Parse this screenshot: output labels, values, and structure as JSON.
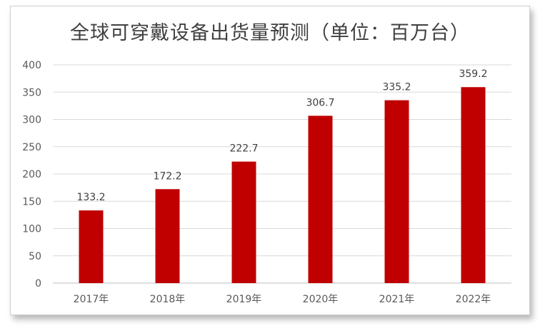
{
  "chart_data": {
    "type": "bar",
    "title": "全球可穿戴设备出货量预测（单位：百万台）",
    "categories": [
      "2017年",
      "2018年",
      "2019年",
      "2020年",
      "2021年",
      "2022年"
    ],
    "values": [
      133.2,
      172.2,
      222.7,
      306.7,
      335.2,
      359.2
    ],
    "value_labels": [
      "133.2",
      "172.2",
      "222.7",
      "306.7",
      "335.2",
      "359.2"
    ],
    "ylim": [
      0,
      400
    ],
    "yticks": [
      "0",
      "50",
      "100",
      "150",
      "200",
      "250",
      "300",
      "350",
      "400"
    ],
    "grid": true,
    "legend": "none",
    "bar_color": "#c00000"
  }
}
